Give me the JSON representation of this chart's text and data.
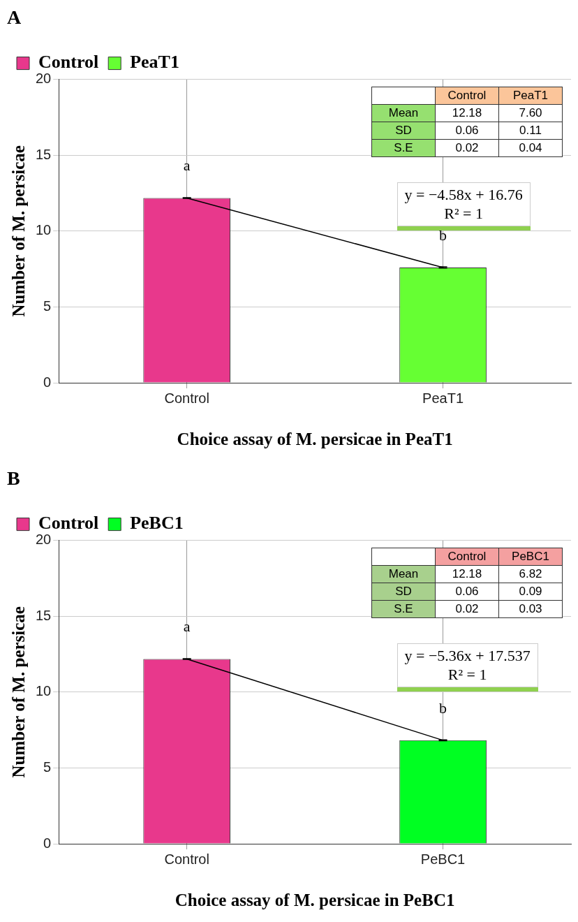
{
  "chart_data": [
    {
      "type": "bar",
      "title": "A",
      "xlabel": "Choice assay of M. persicae in PeaT1",
      "ylabel": "Number of M. persicae",
      "categories": [
        "Control",
        "PeaT1"
      ],
      "series": [
        {
          "name": "Control",
          "color": "#e8388c",
          "values": [
            12.18,
            null
          ],
          "errors": [
            0.02,
            null
          ]
        },
        {
          "name": "PeaT1",
          "color": "#66ff33",
          "values": [
            null,
            7.6
          ],
          "errors": [
            null,
            0.04
          ]
        },
        {
          "type": "line",
          "color": "#000000",
          "x": [
            "Control",
            "PeaT1"
          ],
          "values": [
            12.18,
            7.6
          ]
        }
      ],
      "ylim": [
        0,
        20
      ],
      "yticks": [
        0,
        5,
        10,
        15,
        20
      ],
      "grid": true,
      "legend": "top left",
      "marker": "none",
      "line_style": "solid",
      "annotations": [
        "a",
        "b",
        "y = −4.58x + 16.76",
        "R² = 1",
        "Mean",
        "SD",
        "S.E",
        "12.18",
        "7.60",
        "0.06",
        "0.11",
        "0.02",
        "0.04"
      ]
    },
    {
      "type": "bar",
      "title": "B",
      "xlabel": "Choice assay of M. persicae in PeBC1",
      "ylabel": "Number of M. persicae",
      "categories": [
        "Control",
        "PeBC1"
      ],
      "series": [
        {
          "name": "Control",
          "color": "#e8388c",
          "values": [
            12.18,
            null
          ],
          "errors": [
            0.02,
            null
          ]
        },
        {
          "name": "PeBC1",
          "color": "#00ff22",
          "values": [
            null,
            6.82
          ],
          "errors": [
            null,
            0.03
          ]
        },
        {
          "type": "line",
          "color": "#000000",
          "x": [
            "Control",
            "PeBC1"
          ],
          "values": [
            12.18,
            6.82
          ]
        }
      ],
      "ylim": [
        0,
        20
      ],
      "yticks": [
        0,
        5,
        10,
        15,
        20
      ],
      "grid": true,
      "legend": "top left",
      "marker": "none",
      "line_style": "solid",
      "annotations": [
        "a",
        "b",
        "y = −5.36x + 17.537",
        "R² = 1",
        "Mean",
        "SD",
        "S.E",
        "12.18",
        "6.82",
        "0.06",
        "0.09",
        "0.02",
        "0.03"
      ]
    }
  ]
}
